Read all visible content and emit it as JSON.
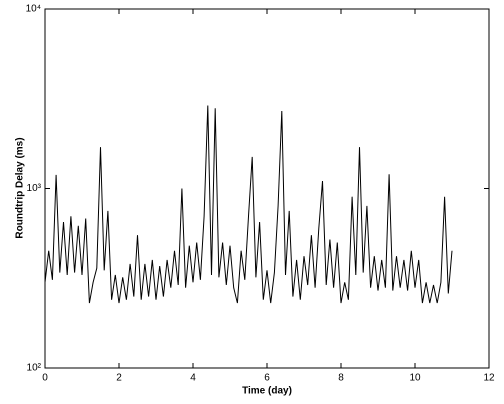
{
  "chart_data": {
    "type": "line",
    "xlabel": "Time (day)",
    "ylabel": "Roundtrip Delay (ms)",
    "xlim": [
      0,
      12
    ],
    "xticks": [
      0,
      2,
      4,
      6,
      8,
      10,
      12
    ],
    "ylim": [
      100,
      10000
    ],
    "yscale": "log",
    "yticks": [
      {
        "value": 100,
        "label": "10²"
      },
      {
        "value": 1000,
        "label": "10³"
      },
      {
        "value": 10000,
        "label": "10⁴"
      }
    ],
    "grid": false,
    "series": [
      {
        "color": "#000000",
        "x": [
          0,
          0.1,
          0.2,
          0.3,
          0.4,
          0.5,
          0.6,
          0.7,
          0.8,
          0.9,
          1,
          1.1,
          1.2,
          1.3,
          1.4,
          1.5,
          1.6,
          1.7,
          1.8,
          1.9,
          2,
          2.1,
          2.2,
          2.3,
          2.4,
          2.5,
          2.6,
          2.7,
          2.8,
          2.9,
          3,
          3.1,
          3.2,
          3.3,
          3.4,
          3.5,
          3.6,
          3.7,
          3.8,
          3.9,
          4,
          4.1,
          4.2,
          4.3,
          4.4,
          4.5,
          4.6,
          4.7,
          4.8,
          4.9,
          5,
          5.1,
          5.2,
          5.3,
          5.4,
          5.5,
          5.6,
          5.7,
          5.8,
          5.9,
          6,
          6.1,
          6.2,
          6.3,
          6.4,
          6.5,
          6.6,
          6.7,
          6.8,
          6.9,
          7,
          7.1,
          7.2,
          7.3,
          7.4,
          7.5,
          7.6,
          7.7,
          7.8,
          7.9,
          8,
          8.1,
          8.2,
          8.3,
          8.4,
          8.5,
          8.6,
          8.7,
          8.8,
          8.9,
          9,
          9.1,
          9.2,
          9.3,
          9.4,
          9.5,
          9.6,
          9.7,
          9.8,
          9.9,
          10,
          10.1,
          10.2,
          10.3,
          10.4,
          10.5,
          10.6,
          10.7,
          10.8,
          10.9,
          11
        ],
        "values": [
          300,
          450,
          310,
          1190,
          340,
          650,
          330,
          700,
          340,
          620,
          330,
          680,
          230,
          300,
          360,
          1700,
          350,
          750,
          240,
          330,
          230,
          320,
          240,
          380,
          250,
          550,
          240,
          380,
          250,
          400,
          240,
          370,
          250,
          400,
          280,
          450,
          290,
          1000,
          280,
          480,
          300,
          500,
          310,
          700,
          2900,
          330,
          2800,
          320,
          500,
          290,
          480,
          280,
          230,
          450,
          310,
          700,
          1500,
          320,
          650,
          240,
          350,
          230,
          340,
          800,
          2700,
          330,
          750,
          250,
          400,
          240,
          420,
          290,
          550,
          280,
          600,
          1100,
          290,
          520,
          280,
          500,
          230,
          300,
          240,
          900,
          330,
          1700,
          340,
          800,
          280,
          420,
          270,
          400,
          280,
          1200,
          270,
          420,
          280,
          400,
          270,
          450,
          280,
          400,
          230,
          300,
          230,
          290,
          230,
          300,
          900,
          260,
          450
        ]
      }
    ]
  }
}
